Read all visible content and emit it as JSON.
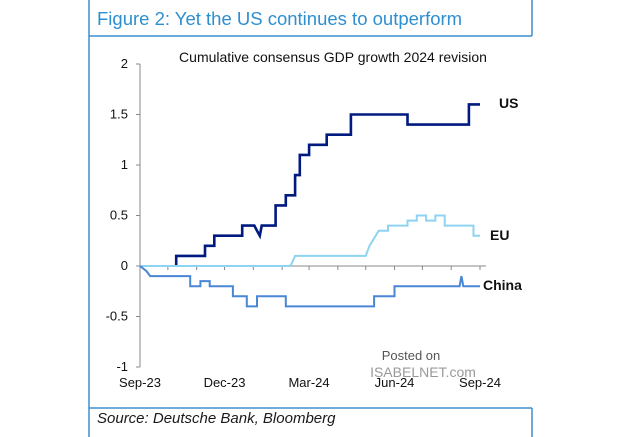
{
  "figure_title": "Figure 2: Yet the US continues to outperform",
  "source": "Source: Deutsche Bank, Bloomberg",
  "watermark": {
    "line1": "Posted on",
    "line2": "ISABELNET.com"
  },
  "colors": {
    "frame": "#3b8fd0",
    "title": "#2e8fd0",
    "US": "#001a80",
    "EU": "#8ed3f0",
    "China": "#4a86d6"
  },
  "chart_data": {
    "type": "line",
    "title": "Cumulative  consensus GDP growth 2024 revision",
    "xlabel": "",
    "ylabel": "",
    "ylim": [
      -1,
      2
    ],
    "yticks": [
      "2",
      "1.5",
      "1",
      "0.5",
      "0",
      "-0.5",
      "-1"
    ],
    "xlim": [
      "2023-09-01",
      "2024-09-15"
    ],
    "xticks": [
      {
        "label": "Sep-23",
        "date": "2023-09-01"
      },
      {
        "label": "Dec-23",
        "date": "2023-12-01"
      },
      {
        "label": "Mar-24",
        "date": "2024-03-01"
      },
      {
        "label": "Jun-24",
        "date": "2024-06-01"
      },
      {
        "label": "Sep-24",
        "date": "2024-09-01"
      }
    ],
    "grid": false,
    "legend": "none",
    "series": [
      {
        "name": "US",
        "points": [
          [
            "2023-10-10",
            0.0
          ],
          [
            "2023-10-10",
            0.1
          ],
          [
            "2023-11-10",
            0.1
          ],
          [
            "2023-11-10",
            0.2
          ],
          [
            "2023-11-20",
            0.2
          ],
          [
            "2023-11-20",
            0.3
          ],
          [
            "2023-12-20",
            0.3
          ],
          [
            "2023-12-20",
            0.4
          ],
          [
            "2024-01-02",
            0.4
          ],
          [
            "2024-01-05",
            0.35
          ],
          [
            "2024-01-08",
            0.3
          ],
          [
            "2024-01-10",
            0.4
          ],
          [
            "2024-01-25",
            0.4
          ],
          [
            "2024-01-25",
            0.6
          ],
          [
            "2024-02-05",
            0.6
          ],
          [
            "2024-02-05",
            0.7
          ],
          [
            "2024-02-15",
            0.7
          ],
          [
            "2024-02-15",
            0.9
          ],
          [
            "2024-02-20",
            0.9
          ],
          [
            "2024-02-20",
            1.1
          ],
          [
            "2024-03-01",
            1.1
          ],
          [
            "2024-03-01",
            1.2
          ],
          [
            "2024-03-20",
            1.2
          ],
          [
            "2024-03-20",
            1.3
          ],
          [
            "2024-04-15",
            1.3
          ],
          [
            "2024-04-15",
            1.5
          ],
          [
            "2024-06-15",
            1.5
          ],
          [
            "2024-06-15",
            1.4
          ],
          [
            "2024-08-20",
            1.4
          ],
          [
            "2024-08-20",
            1.6
          ],
          [
            "2024-09-01",
            1.6
          ]
        ]
      },
      {
        "name": "EU",
        "points": [
          [
            "2023-09-01",
            0.0
          ],
          [
            "2024-02-10",
            0.0
          ],
          [
            "2024-02-15",
            0.1
          ],
          [
            "2024-05-01",
            0.1
          ],
          [
            "2024-05-05",
            0.2
          ],
          [
            "2024-05-15",
            0.35
          ],
          [
            "2024-05-25",
            0.35
          ],
          [
            "2024-05-25",
            0.4
          ],
          [
            "2024-06-15",
            0.4
          ],
          [
            "2024-06-15",
            0.45
          ],
          [
            "2024-06-25",
            0.45
          ],
          [
            "2024-06-25",
            0.5
          ],
          [
            "2024-07-05",
            0.5
          ],
          [
            "2024-07-05",
            0.45
          ],
          [
            "2024-07-15",
            0.45
          ],
          [
            "2024-07-15",
            0.5
          ],
          [
            "2024-07-25",
            0.5
          ],
          [
            "2024-07-25",
            0.4
          ],
          [
            "2024-08-25",
            0.4
          ],
          [
            "2024-08-25",
            0.3
          ],
          [
            "2024-09-01",
            0.3
          ]
        ]
      },
      {
        "name": "China",
        "points": [
          [
            "2023-09-01",
            0.0
          ],
          [
            "2023-09-08",
            -0.05
          ],
          [
            "2023-09-12",
            -0.1
          ],
          [
            "2023-10-25",
            -0.1
          ],
          [
            "2023-10-25",
            -0.2
          ],
          [
            "2023-11-05",
            -0.2
          ],
          [
            "2023-11-05",
            -0.15
          ],
          [
            "2023-11-15",
            -0.15
          ],
          [
            "2023-11-15",
            -0.2
          ],
          [
            "2023-12-10",
            -0.2
          ],
          [
            "2023-12-10",
            -0.3
          ],
          [
            "2023-12-25",
            -0.3
          ],
          [
            "2023-12-25",
            -0.4
          ],
          [
            "2024-01-05",
            -0.4
          ],
          [
            "2024-01-05",
            -0.3
          ],
          [
            "2024-02-05",
            -0.3
          ],
          [
            "2024-02-05",
            -0.4
          ],
          [
            "2024-05-10",
            -0.4
          ],
          [
            "2024-05-10",
            -0.3
          ],
          [
            "2024-06-01",
            -0.3
          ],
          [
            "2024-06-01",
            -0.2
          ],
          [
            "2024-08-10",
            -0.2
          ],
          [
            "2024-08-12",
            -0.1
          ],
          [
            "2024-08-14",
            -0.2
          ],
          [
            "2024-09-01",
            -0.2
          ]
        ]
      }
    ]
  }
}
